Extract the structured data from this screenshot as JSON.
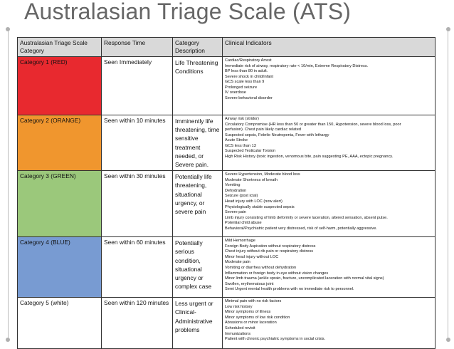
{
  "slide": {
    "title": "Australasian Triage Scale (ATS)"
  },
  "table": {
    "headers": {
      "category": "Australasian Triage Scale Category",
      "response": "Response Time",
      "description": "Category Description",
      "indicators": "Clinical Indicators"
    },
    "rows": [
      {
        "category": "Category 1 (RED)",
        "color": "#e8292f",
        "response": "Seen Immediately",
        "description": "Life Threatening Conditions",
        "indicators": [
          "Cardiac/Respiratory Arrest",
          "Immediate risk of airway, respiratory rate < 10/min, Extreme Respiratory Distress.",
          "BP less than 80 in adult.",
          "Severe shock in child/infant",
          "GCS scale less than 9",
          "Prolonged seizure",
          "IV overdose",
          "Severe behavioral disorder"
        ]
      },
      {
        "category": "Category 2 (ORANGE)",
        "color": "#f0962e",
        "response": "Seen within 10 minutes",
        "description": "Imminently life threatening, time sensitive treatment needed, or Severe pain.",
        "indicators": [
          "Airway risk (stridor)",
          "Circulatory Compromise (HR less than 50 or greater than 150, Hypotension, severe blood loss, poor",
          "perfusion). Chest pain likely cardiac related",
          "Suspected sepsis, Febrile Neutropenia, Fever with lethargy",
          "Acute Stroke",
          "GCS less than 13",
          "Suspected Testicular Torsion",
          "High Risk History (toxic ingestion, venomous bite, pain suggesting PE, AAA, ectopic pregnancy."
        ]
      },
      {
        "category": "Category 3 (GREEN)",
        "color": "#9bc87b",
        "response": "Seen within 30 minutes",
        "description": "Potentially life threatening, situational urgency, or severe pain",
        "indicators": [
          "Severe Hypertension, Moderate blood loss",
          "Moderate Shortness of breath",
          "Vomiting",
          "Dehydration",
          "Seizure (post ictal)",
          "Head injury with LOC (now alert)",
          "Physiologically stable suspected sepsis",
          "Severe pain",
          "Limb injury consisting of limb deformity or severe laceration, altered sensation, absent pulse.",
          "Potential child abuse",
          "Behavioral/Psychiatric patient very distressed, risk of self-harm, potentially aggressive."
        ]
      },
      {
        "category": "Category 4 (BLUE)",
        "color": "#789bd2",
        "response": "Seen within 60 minutes",
        "description": "Potentially serious condition, situational urgency or complex case",
        "indicators": [
          "Mild Hemorrhage",
          "Foreign Body Aspiration without respiratory distress",
          "Chest injury without rib pain or respiratory distress",
          "Minor head injury without LOC",
          "Moderate pain",
          "Vomiting or diarrhea without dehydration",
          "Inflammation or foreign body in eye without vision changes",
          "Minor limb trauma (ankle sprain, fracture, uncomplicated laceration with normal vital signs)",
          "Swollen, erythematous joint",
          "Semi Urgent mental health problems with no immediate risk to personnel."
        ]
      },
      {
        "category": "Category 5 (white)",
        "color": "#ffffff",
        "response": "Seen within 120 minutes",
        "description": "Less urgent or Clinical-Administrative problems",
        "indicators": [
          "Minimal pain with no risk factors",
          "Low risk history",
          "Minor symptoms of illness",
          "Minor symptoms of low risk condition",
          "Abrasions or minor laceration",
          "Scheduled revisit",
          "Immunizations",
          "Patient with chronic psychiatric symptoms in social crisis."
        ]
      }
    ]
  }
}
